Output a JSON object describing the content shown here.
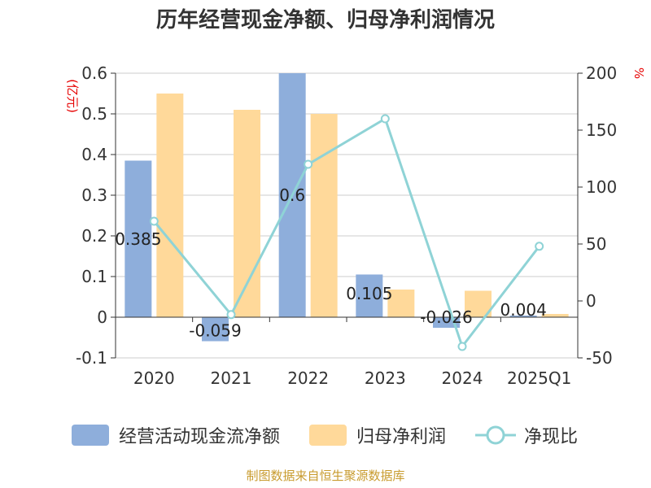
{
  "chart_data": {
    "type": "bar",
    "title": "历年经营现金净额、归母净利润情况",
    "categories": [
      "2020",
      "2021",
      "2022",
      "2023",
      "2024",
      "2025Q1"
    ],
    "y_left_unit": "(亿元)",
    "y_right_unit": "%",
    "y_left_ticks": [
      "0.6",
      "0.5",
      "0.4",
      "0.3",
      "0.2",
      "0.1",
      "0",
      "-0.1"
    ],
    "y_right_ticks": [
      "200",
      "150",
      "100",
      "50",
      "0",
      "-50"
    ],
    "ylim_left": [
      -0.1,
      0.6
    ],
    "ylim_right": [
      -50,
      200
    ],
    "grid": true,
    "legend_position": "bottom",
    "series": [
      {
        "name": "经营活动现金流净额",
        "type": "bar",
        "axis": "left",
        "color": "#8eaedb",
        "values": [
          0.385,
          -0.059,
          0.6,
          0.105,
          -0.026,
          0.004
        ],
        "labels": [
          "0.385",
          "-0.059",
          "0.6",
          "0.105",
          "-0.026",
          "0.004"
        ]
      },
      {
        "name": "归母净利润",
        "type": "bar",
        "axis": "left",
        "color": "#ffd99a",
        "values": [
          0.55,
          0.51,
          0.5,
          0.068,
          0.065,
          0.008
        ]
      },
      {
        "name": "净现比",
        "type": "line",
        "axis": "right",
        "color": "#8fd3d6",
        "values": [
          70,
          -12,
          120,
          160,
          -40,
          48
        ]
      }
    ]
  },
  "source": "制图数据来自恒生聚源数据库"
}
